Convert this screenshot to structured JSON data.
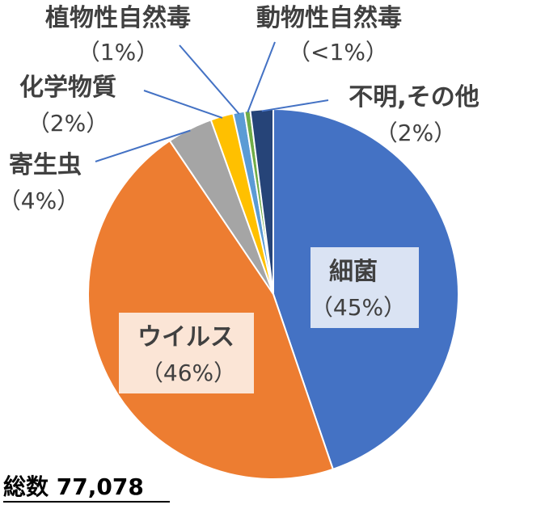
{
  "chart_data": {
    "type": "pie",
    "slices": [
      {
        "label": "細菌",
        "pct_label": "（45%）",
        "value": 45,
        "color": "#4472C4"
      },
      {
        "label": "ウイルス",
        "pct_label": "（46%）",
        "value": 46,
        "color": "#ED7D31"
      },
      {
        "label": "寄生虫",
        "pct_label": "（4%）",
        "value": 4,
        "color": "#A5A5A5"
      },
      {
        "label": "化学物質",
        "pct_label": "（2%）",
        "value": 2,
        "color": "#FFC000"
      },
      {
        "label": "植物性自然毒",
        "pct_label": "（1%）",
        "value": 1,
        "color": "#5B9BD5"
      },
      {
        "label": "動物性自然毒",
        "pct_label": "（<1%）",
        "value": 0.5,
        "color": "#70AD47"
      },
      {
        "label": "不明,その他",
        "pct_label": "（2%）",
        "value": 2,
        "color": "#264478"
      }
    ],
    "label_box_colors": {
      "細菌": "#DAE3F3",
      "ウイルス": "#FBE5D6"
    },
    "leader_line_color": "#4472C4"
  },
  "total_label": "総数 77,078"
}
